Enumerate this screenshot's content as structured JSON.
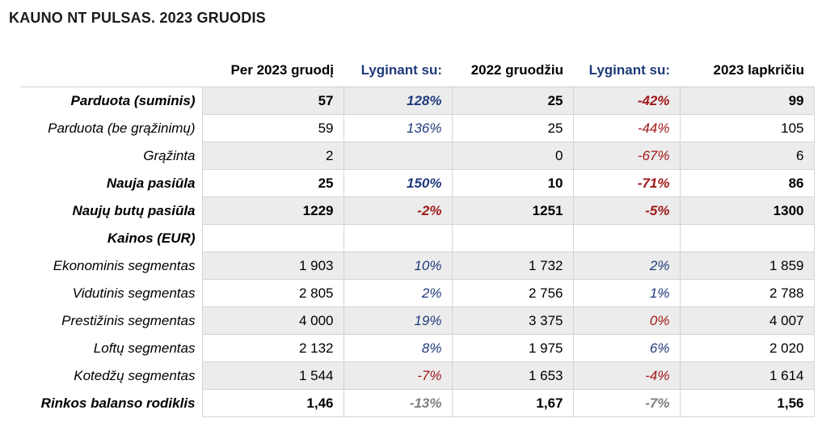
{
  "title": "KAUNO NT PULSAS. 2023 GRUODIS",
  "colors": {
    "positive": "#1f3a7a",
    "negative": "#a01818",
    "neutral": "#7f7f7f",
    "header_blue": "#1f3a7a",
    "row_shade": "#ececec"
  },
  "chart_data": {
    "type": "table",
    "columns": [
      "",
      "Per 2023 gruodį",
      "Lyginant su:",
      "2022 gruodžiu",
      "Lyginant su:",
      "2023 lapkričiu"
    ],
    "rows": [
      {
        "label": "Parduota (suminis)",
        "values": [
          "57",
          "128%",
          "25",
          "-42%",
          "99"
        ],
        "bold": true,
        "shaded": true,
        "tones": [
          "blue",
          "red"
        ]
      },
      {
        "label": "Parduota (be grąžinimų)",
        "values": [
          "59",
          "136%",
          "25",
          "-44%",
          "105"
        ],
        "bold": false,
        "shaded": false,
        "tones": [
          "blue",
          "red"
        ]
      },
      {
        "label": "Grąžinta",
        "values": [
          "2",
          "",
          "0",
          "-67%",
          "6"
        ],
        "bold": false,
        "shaded": true,
        "tones": [
          "blue",
          "red"
        ]
      },
      {
        "label": "Nauja pasiūla",
        "values": [
          "25",
          "150%",
          "10",
          "-71%",
          "86"
        ],
        "bold": true,
        "shaded": false,
        "tones": [
          "blue",
          "red"
        ]
      },
      {
        "label": "Naujų butų pasiūla",
        "values": [
          "1229",
          "-2%",
          "1251",
          "-5%",
          "1300"
        ],
        "bold": true,
        "shaded": true,
        "tones": [
          "red",
          "red"
        ]
      },
      {
        "label": "Kainos (EUR)",
        "values": [
          "",
          "",
          "",
          "",
          ""
        ],
        "bold": true,
        "shaded": false,
        "tones": [
          "blue",
          "blue"
        ]
      },
      {
        "label": "Ekonominis segmentas",
        "values": [
          "1 903",
          "10%",
          "1 732",
          "2%",
          "1 859"
        ],
        "bold": false,
        "shaded": true,
        "tones": [
          "blue",
          "blue"
        ]
      },
      {
        "label": "Vidutinis segmentas",
        "values": [
          "2 805",
          "2%",
          "2 756",
          "1%",
          "2 788"
        ],
        "bold": false,
        "shaded": false,
        "tones": [
          "blue",
          "blue"
        ]
      },
      {
        "label": "Prestižinis segmentas",
        "values": [
          "4 000",
          "19%",
          "3 375",
          "0%",
          "4 007"
        ],
        "bold": false,
        "shaded": true,
        "tones": [
          "blue",
          "red"
        ]
      },
      {
        "label": "Loftų segmentas",
        "values": [
          "2 132",
          "8%",
          "1 975",
          "6%",
          "2 020"
        ],
        "bold": false,
        "shaded": false,
        "tones": [
          "blue",
          "blue"
        ]
      },
      {
        "label": "Kotedžų segmentas",
        "values": [
          "1 544",
          "-7%",
          "1 653",
          "-4%",
          "1 614"
        ],
        "bold": false,
        "shaded": true,
        "tones": [
          "red",
          "red"
        ]
      },
      {
        "label": "Rinkos balanso rodiklis",
        "values": [
          "1,46",
          "-13%",
          "1,67",
          "-7%",
          "1,56"
        ],
        "bold": true,
        "shaded": false,
        "tones": [
          "grey",
          "grey"
        ]
      }
    ]
  }
}
